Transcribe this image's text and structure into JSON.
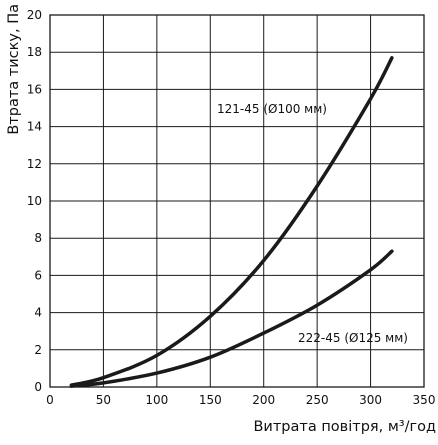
{
  "chart_data": {
    "type": "line",
    "xlabel": "Витрата повітря, м³/год",
    "ylabel": "Втрата тиску, Па",
    "xlim": [
      0,
      350
    ],
    "ylim": [
      0,
      20
    ],
    "x_ticks": [
      0,
      50,
      100,
      150,
      200,
      250,
      300,
      350
    ],
    "y_ticks": [
      0,
      2,
      4,
      6,
      8,
      10,
      12,
      14,
      16,
      18,
      20
    ],
    "grid": true,
    "series": [
      {
        "name": "121-45 (Ø100 мм)",
        "x": [
          20,
          50,
          100,
          150,
          200,
          250,
          300,
          320
        ],
        "y": [
          0.1,
          0.5,
          1.7,
          3.8,
          6.8,
          10.8,
          15.5,
          17.7
        ]
      },
      {
        "name": "222-45 (Ø125 мм)",
        "x": [
          20,
          50,
          100,
          150,
          200,
          250,
          300,
          320
        ],
        "y": [
          0.05,
          0.22,
          0.75,
          1.6,
          2.9,
          4.4,
          6.3,
          7.3
        ]
      }
    ]
  }
}
